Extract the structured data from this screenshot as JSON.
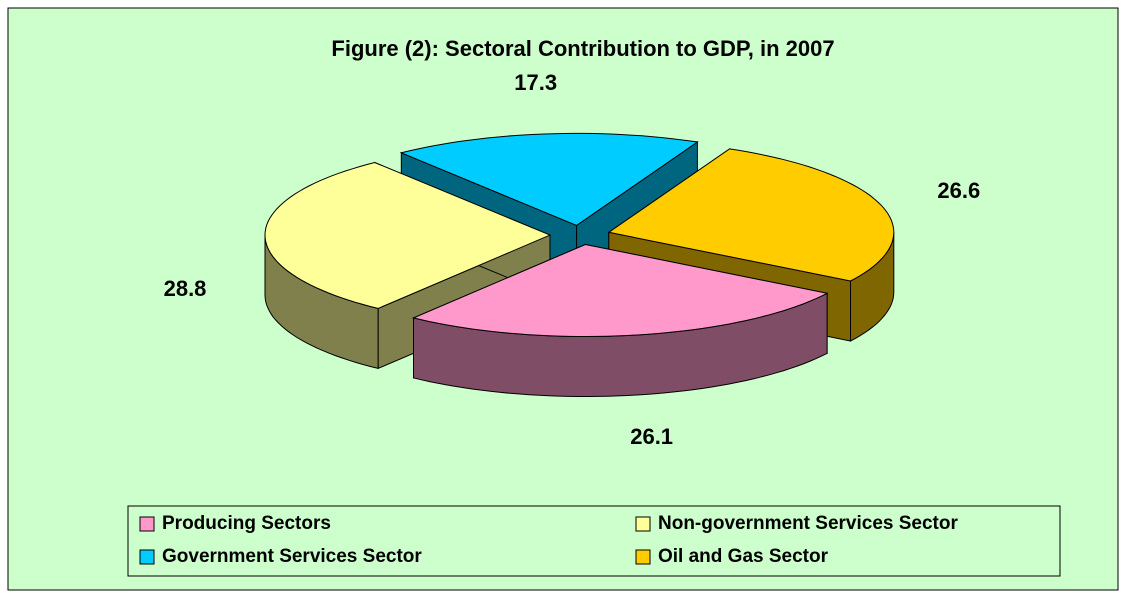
{
  "chart_data": {
    "type": "pie",
    "title": "Figure (2): Sectoral Contribution to GDP, in 2007",
    "categories": [
      "Producing Sectors",
      "Non-government Services Sector",
      "Government Services Sector",
      "Oil and Gas Sector"
    ],
    "values": [
      26.1,
      28.8,
      17.3,
      26.6
    ],
    "colors": [
      "#FF99CC",
      "#FFFF99",
      "#00CCFF",
      "#FFCC00"
    ],
    "legend": "bottom"
  }
}
